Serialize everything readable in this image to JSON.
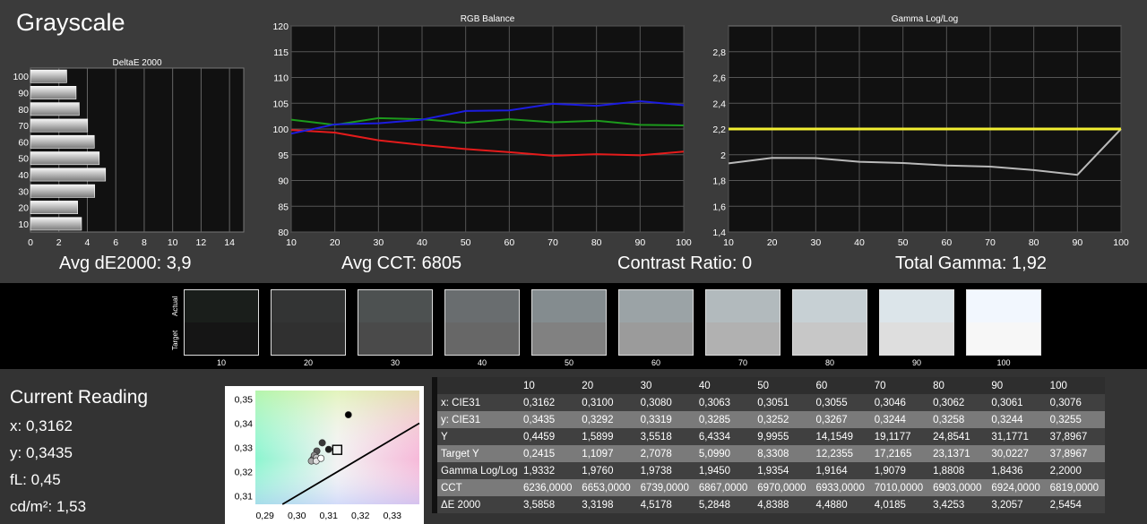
{
  "page": {
    "title": "Grayscale"
  },
  "stats": {
    "avg_de": "Avg dE2000: 3,9",
    "avg_cct": "Avg CCT: 6805",
    "contrast": "Contrast Ratio: 0",
    "gamma": "Total Gamma: 1,92"
  },
  "colors": {
    "red": "#e41b1b",
    "green": "#1c9a1c",
    "blue": "#1c1ce0",
    "yellow": "#f2ef32",
    "gray": "#b9b9b9"
  },
  "chart_data": [
    {
      "type": "bar",
      "title": "DeltaE 2000",
      "orientation": "horizontal",
      "categories": [
        "10",
        "20",
        "30",
        "40",
        "50",
        "60",
        "70",
        "80",
        "90",
        "100"
      ],
      "values": [
        3.59,
        3.32,
        4.52,
        5.28,
        4.84,
        4.49,
        4.02,
        3.43,
        3.21,
        2.55
      ],
      "x_ticks": [
        "0",
        "2",
        "4",
        "6",
        "8",
        "10",
        "12",
        "14"
      ],
      "xlim": [
        0,
        15
      ],
      "grid": true
    },
    {
      "type": "line",
      "title": "RGB Balance",
      "x": [
        10,
        20,
        30,
        40,
        50,
        60,
        70,
        80,
        90,
        100
      ],
      "x_ticks": [
        "10",
        "20",
        "30",
        "40",
        "50",
        "60",
        "70",
        "80",
        "90",
        "100"
      ],
      "y_ticks": [
        "80",
        "85",
        "90",
        "95",
        "100",
        "105",
        "110",
        "115",
        "120"
      ],
      "ylim": [
        80,
        120
      ],
      "series": [
        {
          "values": [
            101.8,
            100.8,
            102.1,
            101.9,
            101.2,
            101.9,
            101.3,
            101.6,
            100.8,
            100.7
          ]
        },
        {
          "values": [
            99.8,
            99.3,
            97.8,
            96.9,
            96.1,
            95.5,
            94.8,
            95.1,
            94.9,
            95.6
          ]
        },
        {
          "values": [
            99.1,
            100.9,
            101.1,
            101.8,
            103.5,
            103.6,
            104.9,
            104.5,
            105.4,
            104.6
          ]
        }
      ],
      "grid": true
    },
    {
      "type": "line",
      "title": "Gamma Log/Log",
      "x": [
        10,
        20,
        30,
        40,
        50,
        60,
        70,
        80,
        90,
        100
      ],
      "x_ticks": [
        "10",
        "20",
        "30",
        "40",
        "50",
        "60",
        "70",
        "80",
        "90",
        "100"
      ],
      "y_ticks": [
        "1,4",
        "1,6",
        "1,8",
        "2",
        "2,2",
        "2,4",
        "2,6",
        "2,8"
      ],
      "ylim": [
        1.4,
        3.0
      ],
      "series": [
        {
          "values": [
            1.9332,
            1.976,
            1.9738,
            1.945,
            1.9354,
            1.9164,
            1.9079,
            1.8808,
            1.8436,
            2.2
          ]
        },
        {
          "values": [
            2.2,
            2.2,
            2.2,
            2.2,
            2.2,
            2.2,
            2.2,
            2.2,
            2.2,
            2.2
          ]
        }
      ],
      "grid": true
    },
    {
      "type": "scatter",
      "x_ticks": [
        "0,29",
        "0,30",
        "0,31",
        "0,32",
        "0,33"
      ],
      "y_ticks": [
        "0,31",
        "0,32",
        "0,33",
        "0,34",
        "0,35"
      ],
      "xlim": [
        0.287,
        0.3385
      ],
      "ylim": [
        0.3065,
        0.3535
      ],
      "points": [
        {
          "x": 0.3162,
          "y": 0.3435
        },
        {
          "x": 0.31,
          "y": 0.3292
        },
        {
          "x": 0.308,
          "y": 0.3319
        },
        {
          "x": 0.3063,
          "y": 0.3285
        },
        {
          "x": 0.3051,
          "y": 0.3252
        },
        {
          "x": 0.3055,
          "y": 0.3267
        },
        {
          "x": 0.3046,
          "y": 0.3244
        },
        {
          "x": 0.3062,
          "y": 0.3258
        },
        {
          "x": 0.3061,
          "y": 0.3244
        },
        {
          "x": 0.3076,
          "y": 0.3255
        }
      ],
      "target": {
        "x": 0.3127,
        "y": 0.329
      }
    }
  ],
  "swatches": {
    "actual_label": "Actual",
    "target_label": "Target",
    "items": [
      {
        "label": "10",
        "actual": "#1a1e1b",
        "target": "#151515"
      },
      {
        "label": "20",
        "actual": "#333434",
        "target": "#303030"
      },
      {
        "label": "30",
        "actual": "#4d5151",
        "target": "#4a4a4a"
      },
      {
        "label": "40",
        "actual": "#696d6f",
        "target": "#676767"
      },
      {
        "label": "50",
        "actual": "#848c8f",
        "target": "#818181"
      },
      {
        "label": "60",
        "actual": "#9ba3a6",
        "target": "#9b9b9b"
      },
      {
        "label": "70",
        "actual": "#b2babd",
        "target": "#b1b1b1"
      },
      {
        "label": "80",
        "actual": "#c7d0d4",
        "target": "#c7c7c7"
      },
      {
        "label": "90",
        "actual": "#dce5ea",
        "target": "#dedede"
      },
      {
        "label": "100",
        "actual": "#f2f7fe",
        "target": "#f7f7f7"
      }
    ]
  },
  "current_reading": {
    "title": "Current Reading",
    "x": "x: 0,3162",
    "y": "y: 0,3435",
    "fl": "fL: 0,45",
    "cdm2": "cd/m²: 1,53"
  },
  "table": {
    "headers": [
      "10",
      "20",
      "30",
      "40",
      "50",
      "60",
      "70",
      "80",
      "90",
      "100"
    ],
    "rows": [
      {
        "label": "x: CIE31",
        "values": [
          "0,3162",
          "0,3100",
          "0,3080",
          "0,3063",
          "0,3051",
          "0,3055",
          "0,3046",
          "0,3062",
          "0,3061",
          "0,3076"
        ]
      },
      {
        "label": "y: CIE31",
        "values": [
          "0,3435",
          "0,3292",
          "0,3319",
          "0,3285",
          "0,3252",
          "0,3267",
          "0,3244",
          "0,3258",
          "0,3244",
          "0,3255"
        ]
      },
      {
        "label": "Y",
        "values": [
          "0,4459",
          "1,5899",
          "3,5518",
          "6,4334",
          "9,9955",
          "14,1549",
          "19,1177",
          "24,8541",
          "31,1771",
          "37,8967"
        ]
      },
      {
        "label": "Target Y",
        "values": [
          "0,2415",
          "1,1097",
          "2,7078",
          "5,0990",
          "8,3308",
          "12,2355",
          "17,2165",
          "23,1371",
          "30,0227",
          "37,8967"
        ]
      },
      {
        "label": "Gamma Log/Log",
        "values": [
          "1,9332",
          "1,9760",
          "1,9738",
          "1,9450",
          "1,9354",
          "1,9164",
          "1,9079",
          "1,8808",
          "1,8436",
          "2,2000"
        ]
      },
      {
        "label": "CCT",
        "values": [
          "6236,0000",
          "6653,0000",
          "6739,0000",
          "6867,0000",
          "6970,0000",
          "6933,0000",
          "7010,0000",
          "6903,0000",
          "6924,0000",
          "6819,0000"
        ]
      },
      {
        "label": "ΔE 2000",
        "values": [
          "3,5858",
          "3,3198",
          "4,5178",
          "5,2848",
          "4,8388",
          "4,4880",
          "4,0185",
          "3,4253",
          "3,2057",
          "2,5454"
        ]
      }
    ]
  }
}
